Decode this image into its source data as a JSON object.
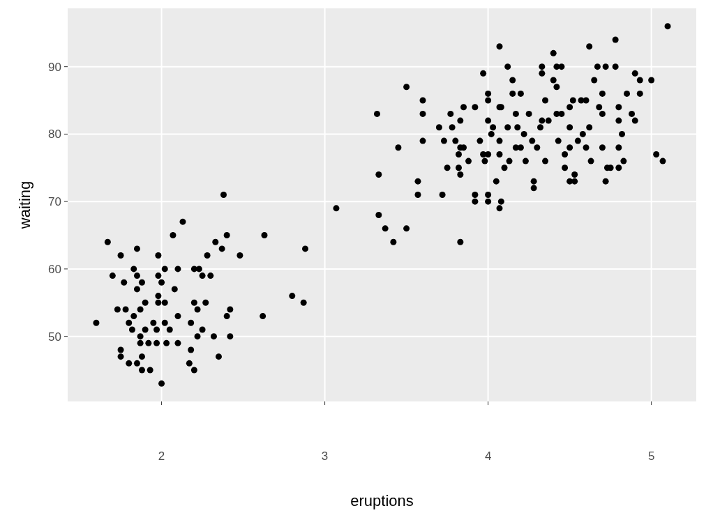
{
  "chart_data": {
    "type": "scatter",
    "xlabel": "eruptions",
    "ylabel": "waiting",
    "xlim": [
      1.425,
      5.275
    ],
    "ylim": [
      40.35,
      98.65
    ],
    "xticks": [
      2,
      3,
      4,
      5
    ],
    "yticks": [
      50,
      60,
      70,
      80,
      90
    ],
    "grid": true,
    "marker": "circle",
    "series": [
      {
        "color": "#000000",
        "x": [
          1.6,
          1.67,
          1.7,
          1.75,
          1.73,
          1.75,
          1.75,
          1.77,
          1.78,
          1.8,
          1.8,
          1.82,
          1.83,
          1.83,
          1.85,
          1.85,
          1.85,
          1.85,
          1.87,
          1.87,
          1.87,
          1.88,
          1.88,
          1.88,
          1.9,
          1.9,
          1.92,
          1.93,
          1.95,
          1.97,
          1.97,
          1.98,
          1.98,
          1.98,
          1.98,
          2.0,
          2.0,
          2.02,
          2.02,
          2.02,
          2.03,
          2.05,
          2.07,
          2.08,
          2.1,
          2.1,
          2.1,
          2.13,
          2.17,
          2.18,
          2.18,
          2.2,
          2.2,
          2.2,
          2.22,
          2.22,
          2.23,
          2.25,
          2.25,
          2.27,
          2.28,
          2.3,
          2.32,
          2.33,
          2.35,
          2.37,
          2.38,
          2.4,
          2.4,
          2.42,
          2.42,
          2.48,
          2.62,
          2.63,
          2.8,
          2.87,
          2.88,
          3.07,
          3.32,
          3.33,
          3.33,
          3.37,
          3.42,
          3.45,
          3.5,
          3.5,
          3.57,
          3.57,
          3.6,
          3.6,
          3.6,
          3.7,
          3.72,
          3.73,
          3.75,
          3.77,
          3.78,
          3.8,
          3.82,
          3.82,
          3.83,
          3.83,
          3.83,
          3.85,
          3.85,
          3.83,
          3.88,
          3.92,
          3.92,
          3.92,
          3.95,
          3.97,
          3.97,
          3.98,
          4.0,
          4.0,
          4.0,
          4.0,
          4.0,
          4.0,
          4.02,
          4.03,
          4.05,
          4.07,
          4.07,
          4.07,
          4.07,
          4.07,
          4.08,
          4.08,
          4.1,
          4.12,
          4.12,
          4.13,
          4.15,
          4.15,
          4.17,
          4.17,
          4.18,
          4.2,
          4.2,
          4.22,
          4.23,
          4.25,
          4.27,
          4.28,
          4.28,
          4.3,
          4.32,
          4.33,
          4.33,
          4.33,
          4.35,
          4.35,
          4.37,
          4.4,
          4.4,
          4.42,
          4.42,
          4.42,
          4.43,
          4.45,
          4.45,
          4.47,
          4.47,
          4.5,
          4.5,
          4.5,
          4.5,
          4.52,
          4.53,
          4.53,
          4.55,
          4.57,
          4.58,
          4.6,
          4.6,
          4.62,
          4.62,
          4.63,
          4.65,
          4.67,
          4.68,
          4.7,
          4.7,
          4.7,
          4.72,
          4.72,
          4.73,
          4.75,
          4.78,
          4.78,
          4.8,
          4.8,
          4.8,
          4.8,
          4.82,
          4.83,
          4.85,
          4.88,
          4.9,
          4.9,
          4.93,
          4.93,
          5.0,
          5.03,
          5.07,
          5.1
        ],
        "values": [
          52,
          64,
          59,
          62,
          54,
          48,
          47,
          58,
          54,
          52,
          46,
          51,
          53,
          60,
          63,
          59,
          57,
          46,
          54,
          50,
          49,
          47,
          45,
          58,
          55,
          51,
          49,
          45,
          52,
          49,
          51,
          55,
          56,
          62,
          59,
          43,
          58,
          60,
          55,
          52,
          49,
          51,
          65,
          57,
          60,
          53,
          49,
          67,
          46,
          52,
          48,
          55,
          45,
          60,
          54,
          50,
          60,
          59,
          51,
          55,
          62,
          59,
          50,
          64,
          47,
          63,
          71,
          65,
          53,
          54,
          50,
          62,
          53,
          65,
          56,
          55,
          63,
          69,
          83,
          74,
          68,
          66,
          64,
          78,
          87,
          66,
          73,
          71,
          85,
          83,
          79,
          81,
          71,
          79,
          75,
          83,
          81,
          79,
          77,
          75,
          74,
          82,
          78,
          84,
          78,
          64,
          76,
          84,
          71,
          70,
          79,
          89,
          77,
          76,
          86,
          85,
          82,
          77,
          71,
          70,
          80,
          81,
          73,
          93,
          84,
          79,
          77,
          69,
          70,
          84,
          75,
          90,
          81,
          76,
          88,
          86,
          83,
          78,
          81,
          86,
          78,
          80,
          76,
          83,
          79,
          73,
          72,
          78,
          81,
          90,
          89,
          82,
          85,
          76,
          82,
          92,
          88,
          90,
          87,
          83,
          79,
          83,
          90,
          77,
          75,
          84,
          81,
          78,
          73,
          85,
          74,
          73,
          79,
          85,
          80,
          85,
          78,
          93,
          81,
          76,
          88,
          90,
          84,
          86,
          83,
          78,
          90,
          73,
          75,
          75,
          94,
          90,
          84,
          82,
          78,
          75,
          80,
          76,
          86,
          83,
          89,
          82,
          88,
          86,
          88,
          77,
          76,
          96
        ]
      }
    ]
  }
}
